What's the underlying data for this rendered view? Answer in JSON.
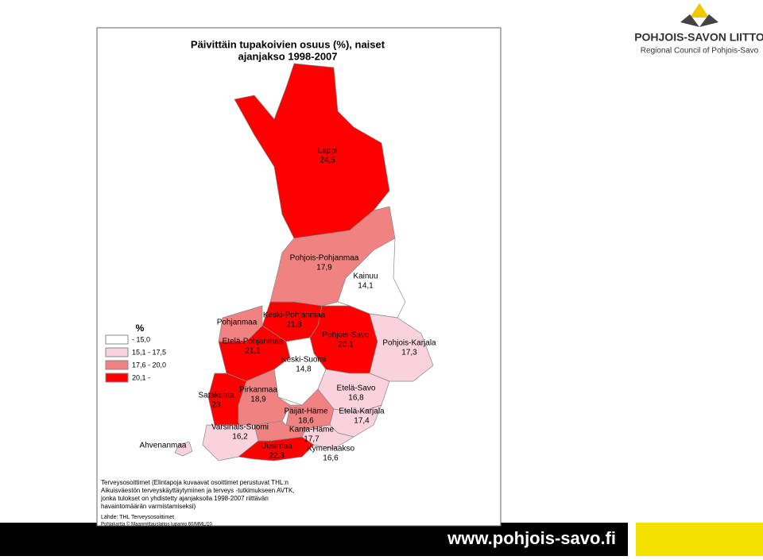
{
  "title": [
    "Päivittäin tupakoivien osuus (%), naiset",
    "ajanjakso 1998-2007"
  ],
  "legend": {
    "title": "%",
    "classes": [
      {
        "label": "- 15,0",
        "color": "#ffffff"
      },
      {
        "label": "15,1 - 17,5",
        "color": "#f9d2de"
      },
      {
        "label": "17,6 - 20,0",
        "color": "#f08282"
      },
      {
        "label": "20,1 -",
        "color": "#ff0000"
      }
    ]
  },
  "regions": [
    {
      "name": "Lappi",
      "value": "24,5",
      "class": 3
    },
    {
      "name": "Pohjois-Pohjanmaa",
      "value": "17,9",
      "class": 2
    },
    {
      "name": "Kainuu",
      "value": "14,1",
      "class": 0
    },
    {
      "name": "Keski-Pohjanmaa",
      "value": "21,8",
      "class": 3
    },
    {
      "name": "Pohjanmaa",
      "class": 2
    },
    {
      "name": "Etelä-Pohjanmaa",
      "value": "21,1",
      "class": 3
    },
    {
      "name": "Pohjois-Savo",
      "value": "20,1",
      "class": 3
    },
    {
      "name": "Pohjois-Karjala",
      "value": "17,3",
      "class": 1
    },
    {
      "name": "Keski-Suomi",
      "value": "14,8",
      "class": 0
    },
    {
      "name": "Etelä-Savo",
      "value": "16,8",
      "class": 1
    },
    {
      "name": "Satakunta",
      "value": "23",
      "class": 3
    },
    {
      "name": "Pirkanmaa",
      "value": "18,9",
      "class": 2
    },
    {
      "name": "Päijät-Häme",
      "value": "18,6",
      "class": 2
    },
    {
      "name": "Etelä-Karjala",
      "value": "17,4",
      "class": 1
    },
    {
      "name": "Varsinais-Suomi",
      "value": "16,2",
      "class": 1
    },
    {
      "name": "Kanta-Häme",
      "value": "17,7",
      "class": 2
    },
    {
      "name": "Uusimaa",
      "value": "22,3",
      "class": 3
    },
    {
      "name": "Kymenlaakso",
      "value": "16,6",
      "class": 1
    },
    {
      "name": "Ahvenanmaa",
      "class": 1
    }
  ],
  "notes": [
    "Terveysosoittimet (Elintapoja kuvaavat osoittimet perustuvat THL:n",
    "Aikuisväestön terveyskäyttäytyminen ja terveys -tutkimukseen AVTK,",
    "jonka tulokset on yhdistetty ajanjaksolla 1998-2007 riittävän",
    "havaintomäärän varmistamiseksi)"
  ],
  "source": "Lähde: THL Terveysosoittimet",
  "basemap": "Pohjakartta © Maanmittauslaitos lupanro 60/MML/10",
  "logo": {
    "name": "POHJOIS-SAVON LIITTO",
    "subtitle": "Regional Council of Pohjois-Savo"
  },
  "website": "www.pohjois-savo.fi"
}
